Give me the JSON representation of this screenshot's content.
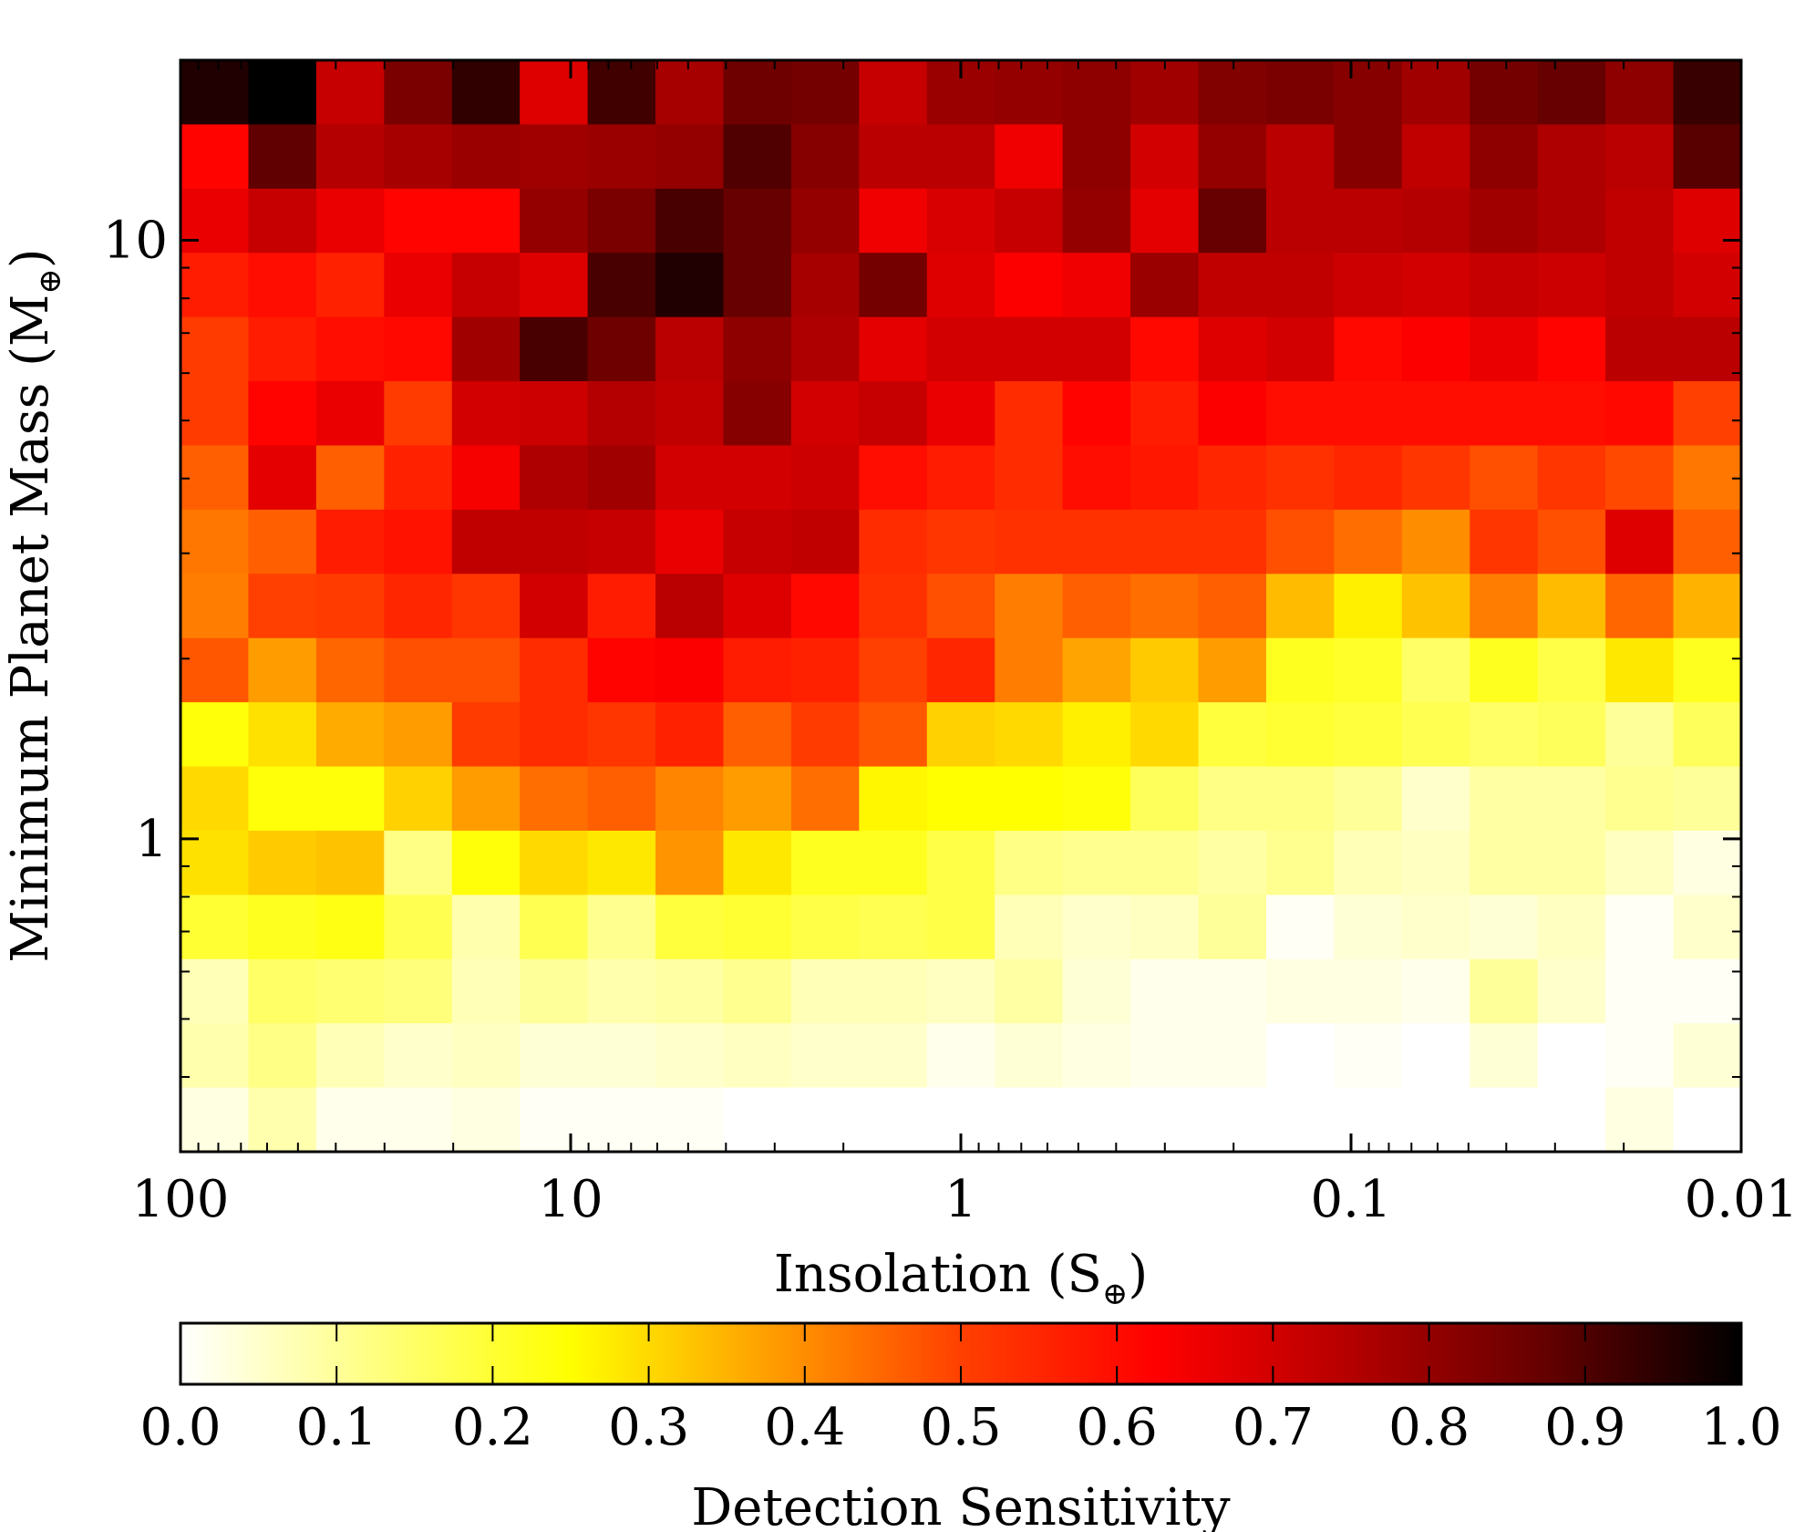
{
  "chart_data": {
    "type": "heatmap",
    "xlabel": "Insolation (S",
    "xlabel_sub": "⊕",
    "xlabel_end": ")",
    "ylabel": "Minimum Planet Mass (M",
    "ylabel_sub": "⊕",
    "ylabel_end": ")",
    "x_scale": "log",
    "x_direction": "decreasing",
    "y_scale": "log",
    "xlim": [
      100,
      0.01
    ],
    "ylim": [
      0.3,
      20
    ],
    "x_ticks": [
      {
        "value": 100,
        "label": "100"
      },
      {
        "value": 10,
        "label": "10"
      },
      {
        "value": 1,
        "label": "1"
      },
      {
        "value": 0.1,
        "label": "0.1"
      },
      {
        "value": 0.01,
        "label": "0.01"
      }
    ],
    "y_ticks": [
      {
        "value": 1,
        "label": "1"
      },
      {
        "value": 10,
        "label": "10"
      }
    ],
    "n_cols": 23,
    "n_rows": 17,
    "grid": false,
    "colorbar": {
      "label": "Detection Sensitivity",
      "colormap": "hot_r",
      "range": [
        0,
        1
      ],
      "ticks": [
        "0.0",
        "0.1",
        "0.2",
        "0.3",
        "0.4",
        "0.5",
        "0.6",
        "0.7",
        "0.8",
        "0.9",
        "1.0"
      ],
      "stops": [
        "#ffffff",
        "#ffff80",
        "#ffff00",
        "#ffa000",
        "#ff4000",
        "#ff0000",
        "#b40000",
        "#640000",
        "#000000"
      ]
    },
    "values_top_row_first": [
      [
        0.96,
        1.0,
        0.72,
        0.84,
        0.94,
        0.68,
        0.92,
        0.77,
        0.86,
        0.85,
        0.72,
        0.79,
        0.8,
        0.81,
        0.78,
        0.83,
        0.84,
        0.82,
        0.78,
        0.85,
        0.87,
        0.81,
        0.93
      ],
      [
        0.62,
        0.88,
        0.75,
        0.77,
        0.79,
        0.78,
        0.79,
        0.8,
        0.9,
        0.82,
        0.74,
        0.74,
        0.65,
        0.81,
        0.7,
        0.8,
        0.74,
        0.82,
        0.73,
        0.81,
        0.76,
        0.74,
        0.89
      ],
      [
        0.66,
        0.72,
        0.66,
        0.62,
        0.62,
        0.8,
        0.84,
        0.91,
        0.87,
        0.8,
        0.65,
        0.69,
        0.72,
        0.8,
        0.67,
        0.87,
        0.74,
        0.74,
        0.75,
        0.78,
        0.76,
        0.73,
        0.68
      ],
      [
        0.57,
        0.6,
        0.56,
        0.66,
        0.72,
        0.68,
        0.91,
        0.96,
        0.87,
        0.77,
        0.85,
        0.68,
        0.63,
        0.65,
        0.79,
        0.73,
        0.73,
        0.71,
        0.7,
        0.72,
        0.71,
        0.73,
        0.7
      ],
      [
        0.51,
        0.57,
        0.6,
        0.61,
        0.78,
        0.91,
        0.86,
        0.74,
        0.81,
        0.76,
        0.67,
        0.7,
        0.7,
        0.7,
        0.61,
        0.68,
        0.7,
        0.61,
        0.63,
        0.66,
        0.62,
        0.74,
        0.74
      ],
      [
        0.51,
        0.62,
        0.66,
        0.51,
        0.7,
        0.71,
        0.75,
        0.73,
        0.82,
        0.7,
        0.72,
        0.66,
        0.54,
        0.62,
        0.57,
        0.63,
        0.6,
        0.6,
        0.6,
        0.6,
        0.6,
        0.61,
        0.5
      ],
      [
        0.46,
        0.67,
        0.46,
        0.56,
        0.64,
        0.76,
        0.78,
        0.7,
        0.7,
        0.71,
        0.6,
        0.57,
        0.54,
        0.6,
        0.58,
        0.55,
        0.53,
        0.55,
        0.52,
        0.48,
        0.52,
        0.49,
        0.43
      ],
      [
        0.43,
        0.46,
        0.57,
        0.59,
        0.73,
        0.73,
        0.72,
        0.66,
        0.72,
        0.73,
        0.54,
        0.52,
        0.53,
        0.53,
        0.53,
        0.53,
        0.48,
        0.44,
        0.4,
        0.52,
        0.48,
        0.68,
        0.46
      ],
      [
        0.42,
        0.5,
        0.51,
        0.55,
        0.52,
        0.7,
        0.57,
        0.74,
        0.68,
        0.61,
        0.53,
        0.48,
        0.42,
        0.46,
        0.44,
        0.46,
        0.34,
        0.27,
        0.33,
        0.42,
        0.34,
        0.45,
        0.35
      ],
      [
        0.47,
        0.38,
        0.45,
        0.48,
        0.48,
        0.54,
        0.62,
        0.63,
        0.57,
        0.56,
        0.5,
        0.55,
        0.42,
        0.37,
        0.32,
        0.38,
        0.22,
        0.21,
        0.15,
        0.22,
        0.18,
        0.28,
        0.22
      ],
      [
        0.24,
        0.29,
        0.36,
        0.38,
        0.51,
        0.54,
        0.52,
        0.56,
        0.46,
        0.51,
        0.47,
        0.31,
        0.3,
        0.27,
        0.3,
        0.19,
        0.2,
        0.19,
        0.17,
        0.15,
        0.16,
        0.1,
        0.16
      ],
      [
        0.3,
        0.24,
        0.24,
        0.31,
        0.38,
        0.44,
        0.46,
        0.41,
        0.38,
        0.44,
        0.26,
        0.25,
        0.25,
        0.24,
        0.16,
        0.12,
        0.12,
        0.1,
        0.05,
        0.09,
        0.09,
        0.11,
        0.1
      ],
      [
        0.29,
        0.32,
        0.33,
        0.12,
        0.24,
        0.3,
        0.28,
        0.39,
        0.28,
        0.22,
        0.22,
        0.18,
        0.12,
        0.11,
        0.11,
        0.09,
        0.11,
        0.07,
        0.06,
        0.09,
        0.09,
        0.06,
        0.03
      ],
      [
        0.2,
        0.22,
        0.23,
        0.17,
        0.08,
        0.17,
        0.11,
        0.19,
        0.2,
        0.18,
        0.17,
        0.18,
        0.07,
        0.05,
        0.06,
        0.1,
        0.01,
        0.04,
        0.05,
        0.04,
        0.06,
        0.01,
        0.05
      ],
      [
        0.07,
        0.15,
        0.14,
        0.13,
        0.07,
        0.1,
        0.08,
        0.09,
        0.11,
        0.07,
        0.07,
        0.06,
        0.09,
        0.04,
        0.02,
        0.02,
        0.03,
        0.03,
        0.02,
        0.1,
        0.05,
        0.01,
        0.01
      ],
      [
        0.08,
        0.12,
        0.07,
        0.05,
        0.06,
        0.04,
        0.04,
        0.05,
        0.06,
        0.05,
        0.05,
        0.02,
        0.04,
        0.03,
        0.02,
        0.02,
        0.0,
        0.01,
        0.0,
        0.04,
        0.0,
        0.01,
        0.04
      ],
      [
        0.03,
        0.08,
        0.02,
        0.02,
        0.03,
        0.01,
        0.01,
        0.01,
        0.0,
        0.0,
        0.0,
        0.0,
        0.0,
        0.0,
        0.0,
        0.0,
        0.0,
        0.0,
        0.0,
        0.0,
        0.0,
        0.03,
        0.0
      ]
    ]
  }
}
